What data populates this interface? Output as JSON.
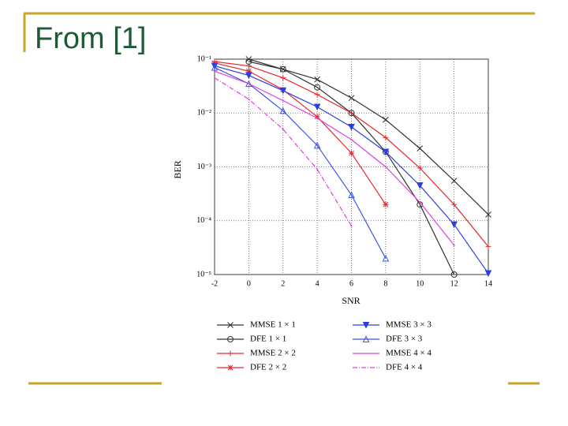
{
  "slide_title": "From [1]",
  "chart_data": {
    "type": "line",
    "xlabel": "SNR",
    "ylabel": "BER",
    "log_y": true,
    "grid": true,
    "xlim": [
      -2,
      14
    ],
    "xticks": [
      -2,
      0,
      2,
      4,
      6,
      8,
      10,
      12,
      14
    ],
    "ylim": [
      1e-05,
      0.1
    ],
    "yticks": [
      {
        "value": 1e-05,
        "label": "10⁻⁵"
      },
      {
        "value": 0.0001,
        "label": "10⁻⁴"
      },
      {
        "value": 0.001,
        "label": "10⁻³"
      },
      {
        "value": 0.01,
        "label": "10⁻²"
      },
      {
        "value": 0.1,
        "label": "10⁻¹"
      }
    ],
    "x": [
      -2,
      0,
      2,
      4,
      6,
      8,
      10,
      12,
      14
    ],
    "series": [
      {
        "name": "MMSE 1 × 1",
        "color": "#333333",
        "marker": "x",
        "dash": "solid",
        "values": [
          null,
          0.1,
          0.065,
          0.042,
          0.019,
          0.0075,
          0.0022,
          0.00055,
          0.00013
        ]
      },
      {
        "name": "DFE 1 × 1",
        "color": "#333333",
        "marker": "o",
        "dash": "solid",
        "values": [
          null,
          0.09,
          0.065,
          0.03,
          0.01,
          0.0019,
          0.0002,
          1e-05,
          null
        ]
      },
      {
        "name": "MMSE 2 × 2",
        "color": "#e8262a",
        "marker": "+",
        "dash": "solid",
        "values": [
          0.09,
          0.075,
          0.045,
          0.022,
          0.01,
          0.0035,
          0.00095,
          0.0002,
          3.3e-05
        ]
      },
      {
        "name": "DFE 2 × 2",
        "color": "#e8262a",
        "marker": "*",
        "dash": "solid",
        "values": [
          0.085,
          0.06,
          0.027,
          0.0085,
          0.0018,
          0.0002,
          null,
          null,
          null
        ]
      },
      {
        "name": "MMSE 3 × 3",
        "color": "#2b3ee0",
        "marker": "v",
        "dash": "solid",
        "values": [
          0.075,
          0.05,
          0.026,
          0.013,
          0.0055,
          0.0019,
          0.00045,
          8.5e-05,
          1.05e-05
        ]
      },
      {
        "name": "DFE 3 × 3",
        "color": "#3d55e8",
        "marker": "^",
        "dash": "solid",
        "values": [
          0.07,
          0.035,
          0.011,
          0.0025,
          0.0003,
          2e-05,
          null,
          null,
          null
        ]
      },
      {
        "name": "MMSE 4 × 4",
        "color": "#e040e0",
        "marker": "none",
        "dash": "solid",
        "values": [
          0.06,
          0.035,
          0.017,
          0.008,
          0.0032,
          0.001,
          0.00022,
          3.5e-05,
          null
        ]
      },
      {
        "name": "DFE 4 × 4",
        "color": "#e040e0",
        "marker": "none",
        "dash": "dashdot",
        "values": [
          0.045,
          0.018,
          0.005,
          0.0009,
          8e-05,
          null,
          null,
          null,
          null
        ]
      }
    ]
  }
}
